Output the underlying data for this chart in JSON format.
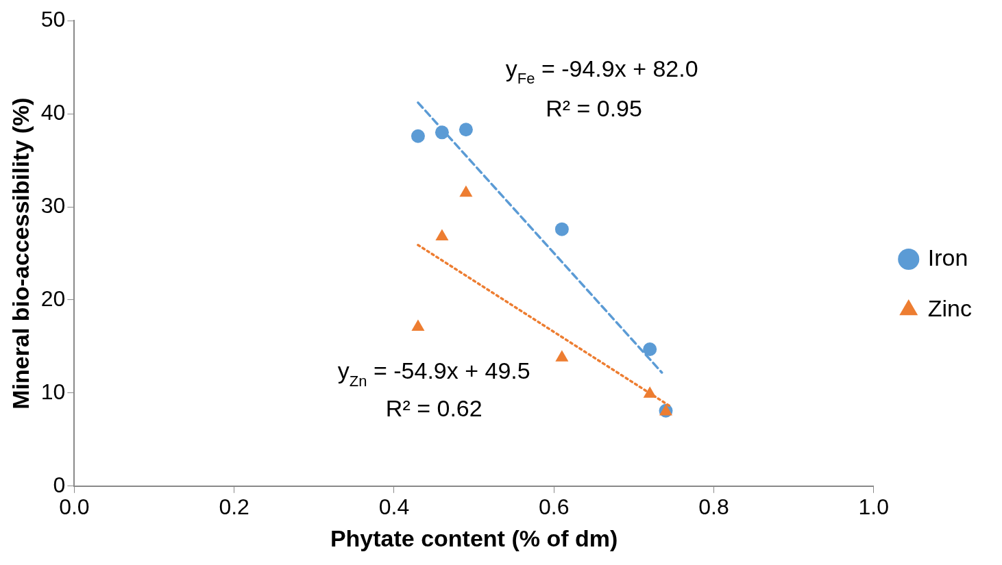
{
  "chart_data": {
    "type": "scatter",
    "xlabel": "Phytate content (% of dm)",
    "ylabel": "Mineral bio-accessibility (%)",
    "xlim": [
      0,
      1
    ],
    "xticks": [
      {
        "value": 0,
        "label": "0.0"
      },
      {
        "value": 0.2,
        "label": "0.2"
      },
      {
        "value": 0.4,
        "label": "0.4"
      },
      {
        "value": 0.6,
        "label": "0.6"
      },
      {
        "value": 0.8,
        "label": "0.8"
      },
      {
        "value": 1,
        "label": "1.0"
      }
    ],
    "ylim": [
      0,
      50
    ],
    "yticks": [
      0,
      10,
      20,
      30,
      40,
      50
    ],
    "grid": false,
    "legend": "right",
    "series": [
      {
        "name": "Iron",
        "color": "#5b9bd5",
        "marker": "circle",
        "x": [
          0.43,
          0.46,
          0.49,
          0.61,
          0.72,
          0.74
        ],
        "values": [
          37.6,
          38.0,
          38.3,
          27.6,
          14.7,
          8.1
        ]
      },
      {
        "name": "Zinc",
        "color": "#ed7d31",
        "marker": "triangle",
        "x": [
          0.43,
          0.46,
          0.49,
          0.61,
          0.72,
          0.74
        ],
        "values": [
          17.1,
          26.8,
          31.5,
          13.8,
          9.9,
          8.0
        ]
      },
      {
        "type": "line",
        "color": "#5b9bd5",
        "line_style": "dashed",
        "marker": "none",
        "x": [
          0.43,
          0.735
        ],
        "values": [
          41.2,
          12.2
        ]
      },
      {
        "type": "line",
        "color": "#ed7d31",
        "line_style": "dotted",
        "marker": "none",
        "x": [
          0.43,
          0.745
        ],
        "values": [
          25.9,
          8.6
        ]
      }
    ],
    "annotations": [
      "y$_{Fe}$ = -94.9x + 82.0",
      "R² = 0.95",
      "y$_{Zn}$ = -54.9x + 49.5",
      "R² = 0.62"
    ]
  }
}
